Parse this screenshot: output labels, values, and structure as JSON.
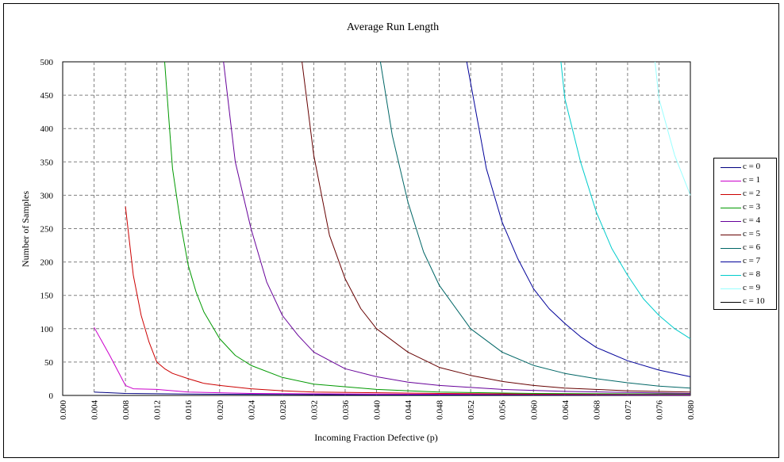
{
  "chart_data": {
    "type": "line",
    "title": "Average Run Length",
    "xlabel": "Incoming Fraction Defective (p)",
    "ylabel": "Number of Samples",
    "xlim": [
      0.0,
      0.08
    ],
    "ylim": [
      0,
      500
    ],
    "x_ticks": [
      "0.000",
      "0.004",
      "0.008",
      "0.012",
      "0.016",
      "0.020",
      "0.024",
      "0.028",
      "0.032",
      "0.036",
      "0.040",
      "0.044",
      "0.048",
      "0.052",
      "0.056",
      "0.060",
      "0.064",
      "0.068",
      "0.072",
      "0.076",
      "0.080"
    ],
    "y_ticks": [
      "0",
      "50",
      "100",
      "150",
      "200",
      "250",
      "300",
      "350",
      "400",
      "450",
      "500"
    ],
    "grid": true,
    "legend_position": "right",
    "series": [
      {
        "name": "c = 0",
        "color": "#000080",
        "x": [
          0.004,
          0.008,
          0.016,
          0.04,
          0.08
        ],
        "y": [
          5,
          3,
          2,
          1,
          1
        ]
      },
      {
        "name": "c = 1",
        "color": "#cc00cc",
        "x": [
          0.004,
          0.006,
          0.008,
          0.009,
          0.012,
          0.016,
          0.024,
          0.04,
          0.08
        ],
        "y": [
          102,
          60,
          15,
          10,
          9,
          5,
          3,
          2,
          1
        ]
      },
      {
        "name": "c = 2",
        "color": "#cc0000",
        "x": [
          0.008,
          0.009,
          0.01,
          0.011,
          0.012,
          0.013,
          0.014,
          0.016,
          0.018,
          0.02,
          0.024,
          0.028,
          0.032,
          0.04,
          0.048,
          0.06,
          0.08
        ],
        "y": [
          283,
          180,
          120,
          80,
          50,
          40,
          33,
          25,
          18,
          15,
          10,
          7,
          5,
          4,
          3,
          2,
          2
        ]
      },
      {
        "name": "c = 3",
        "color": "#009900",
        "x": [
          0.013,
          0.014,
          0.015,
          0.016,
          0.017,
          0.018,
          0.02,
          0.022,
          0.024,
          0.028,
          0.032,
          0.04,
          0.048,
          0.06,
          0.08
        ],
        "y": [
          500,
          340,
          260,
          195,
          155,
          125,
          85,
          60,
          45,
          27,
          17,
          9,
          5,
          3,
          2
        ]
      },
      {
        "name": "c = 4",
        "color": "#660099",
        "x": [
          0.0205,
          0.022,
          0.024,
          0.026,
          0.028,
          0.03,
          0.032,
          0.036,
          0.04,
          0.044,
          0.048,
          0.056,
          0.064,
          0.08
        ],
        "y": [
          500,
          350,
          250,
          170,
          120,
          90,
          65,
          40,
          28,
          20,
          15,
          9,
          6,
          3
        ]
      },
      {
        "name": "c = 5",
        "color": "#660000",
        "x": [
          0.0305,
          0.032,
          0.034,
          0.036,
          0.038,
          0.04,
          0.044,
          0.048,
          0.052,
          0.056,
          0.06,
          0.064,
          0.072,
          0.08
        ],
        "y": [
          500,
          360,
          240,
          175,
          130,
          100,
          65,
          42,
          30,
          21,
          15,
          11,
          7,
          5
        ]
      },
      {
        "name": "c = 6",
        "color": "#006666",
        "x": [
          0.0405,
          0.042,
          0.044,
          0.046,
          0.048,
          0.052,
          0.056,
          0.06,
          0.064,
          0.068,
          0.072,
          0.076,
          0.08
        ],
        "y": [
          500,
          390,
          290,
          215,
          165,
          100,
          65,
          45,
          33,
          25,
          19,
          14,
          11
        ]
      },
      {
        "name": "c = 7",
        "color": "#000099",
        "x": [
          0.0515,
          0.054,
          0.056,
          0.058,
          0.06,
          0.062,
          0.064,
          0.066,
          0.068,
          0.072,
          0.076,
          0.08
        ],
        "y": [
          500,
          340,
          260,
          205,
          160,
          130,
          108,
          88,
          72,
          52,
          38,
          28
        ]
      },
      {
        "name": "c = 8",
        "color": "#00cccc",
        "x": [
          0.0635,
          0.064,
          0.066,
          0.068,
          0.07,
          0.072,
          0.074,
          0.076,
          0.078,
          0.08
        ],
        "y": [
          500,
          445,
          350,
          275,
          220,
          180,
          145,
          120,
          100,
          85
        ]
      },
      {
        "name": "c = 9",
        "color": "#99ffff",
        "x": [
          0.0755,
          0.076,
          0.078,
          0.08
        ],
        "y": [
          500,
          445,
          360,
          300
        ]
      },
      {
        "name": "c = 10",
        "color": "#000000",
        "x": [],
        "y": []
      }
    ]
  }
}
